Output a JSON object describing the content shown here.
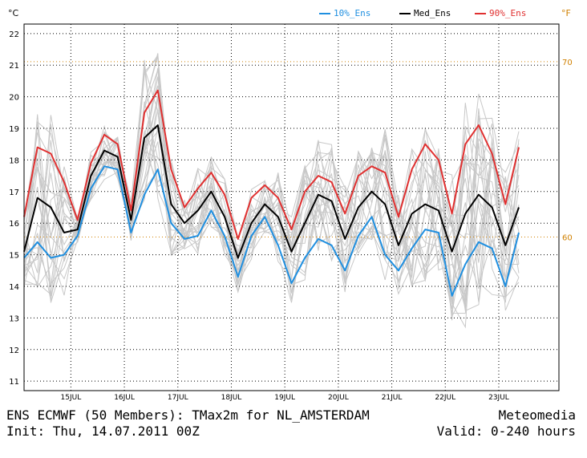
{
  "header": {
    "unit_left": "°C",
    "unit_right": "°F",
    "legend": [
      {
        "label": "10%_Ens",
        "color": "#1f8fe0"
      },
      {
        "label": "Med_Ens",
        "color": "#000000"
      },
      {
        "label": "90%_Ens",
        "color": "#e03030"
      }
    ]
  },
  "footer": {
    "line1_left": "ENS ECMWF (50 Members): TMax2m for NL_AMSTERDAM",
    "line1_right": "Meteomedia",
    "line2_left": "Init: Thu, 14.07.2011 00Z",
    "line2_right": "Valid: 0-240 hours"
  },
  "colors": {
    "members": "#c8c8c8",
    "p10": "#1f8fe0",
    "median": "#000000",
    "p90": "#e03030",
    "fahrenheit": "#d08000",
    "grid": "#000000"
  },
  "chart_data": {
    "type": "line",
    "ylabel": "°C",
    "ylim": [
      10.7,
      22.3
    ],
    "xlim": [
      0,
      40
    ],
    "yticks": [
      11,
      12,
      13,
      14,
      15,
      16,
      17,
      18,
      19,
      20,
      21,
      22
    ],
    "y2label": "°F",
    "y2ticks": [
      {
        "label": "60",
        "value_c": 15.56
      },
      {
        "label": "70",
        "value_c": 21.11
      }
    ],
    "xticks": [
      {
        "label": "15JUL",
        "x": 3.5
      },
      {
        "label": "16JUL",
        "x": 7.5
      },
      {
        "label": "17JUL",
        "x": 11.5
      },
      {
        "label": "18JUL",
        "x": 15.5
      },
      {
        "label": "19JUL",
        "x": 19.5
      },
      {
        "label": "20JUL",
        "x": 23.5
      },
      {
        "label": "21JUL",
        "x": 27.5
      },
      {
        "label": "22JUL",
        "x": 31.5
      },
      {
        "label": "23JUL",
        "x": 35.5
      }
    ],
    "grid": true,
    "legend_position": "top-right",
    "x": [
      0,
      1,
      2,
      3,
      4,
      5,
      6,
      7,
      8,
      9,
      10,
      11,
      12,
      13,
      14,
      15,
      16,
      17,
      18,
      19,
      20,
      21,
      22,
      23,
      24,
      25,
      26,
      27,
      28,
      29,
      30,
      31,
      32,
      33,
      34,
      35,
      36,
      37,
      38,
      39,
      40
    ],
    "series": [
      {
        "name": "10%_Ens",
        "color": "#1f8fe0",
        "values": [
          14.9,
          15.4,
          14.9,
          15.0,
          15.6,
          17.1,
          17.8,
          17.7,
          15.7,
          16.9,
          17.7,
          16.0,
          15.5,
          15.6,
          16.4,
          15.6,
          14.3,
          15.6,
          16.2,
          15.3,
          14.1,
          14.9,
          15.5,
          15.3,
          14.5,
          15.6,
          16.2,
          15.0,
          14.5,
          15.2,
          15.8,
          15.7,
          13.7,
          14.7,
          15.4,
          15.2,
          14.0,
          15.7,
          null,
          null,
          null
        ]
      },
      {
        "name": "Med_Ens",
        "color": "#000000",
        "values": [
          15.1,
          16.8,
          16.5,
          15.7,
          15.8,
          17.5,
          18.3,
          18.1,
          16.1,
          18.7,
          19.1,
          16.6,
          16.0,
          16.4,
          17.0,
          16.2,
          14.9,
          16.0,
          16.6,
          16.2,
          15.1,
          16.0,
          16.9,
          16.7,
          15.5,
          16.5,
          17.0,
          16.6,
          15.3,
          16.3,
          16.6,
          16.4,
          15.1,
          16.3,
          16.9,
          16.5,
          15.3,
          16.5,
          null,
          null,
          null
        ]
      },
      {
        "name": "90%_Ens",
        "color": "#e03030",
        "values": [
          16.2,
          18.4,
          18.2,
          17.3,
          16.1,
          17.9,
          18.8,
          18.5,
          16.4,
          19.5,
          20.2,
          17.7,
          16.5,
          17.1,
          17.6,
          16.9,
          15.5,
          16.8,
          17.2,
          16.8,
          15.8,
          17.0,
          17.5,
          17.3,
          16.3,
          17.5,
          17.8,
          17.6,
          16.2,
          17.7,
          18.5,
          18.0,
          16.3,
          18.5,
          19.1,
          18.2,
          16.6,
          18.4,
          null,
          null,
          null
        ]
      }
    ]
  }
}
